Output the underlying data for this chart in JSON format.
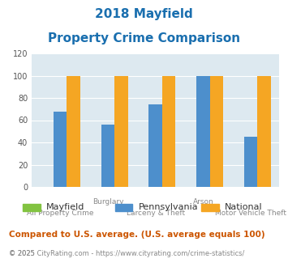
{
  "title_line1": "2018 Mayfield",
  "title_line2": "Property Crime Comparison",
  "title_color": "#1a6faf",
  "categories": [
    "All Property Crime",
    "Burglary",
    "Larceny & Theft",
    "Arson",
    "Motor Vehicle Theft"
  ],
  "category_labels_top": [
    "",
    "Burglary",
    "",
    "Arson",
    ""
  ],
  "category_labels_bot": [
    "All Property Crime",
    "",
    "Larceny & Theft",
    "",
    "Motor Vehicle Theft"
  ],
  "mayfield": [
    0,
    0,
    0,
    0,
    0
  ],
  "pennsylvania": [
    68,
    56,
    74,
    100,
    45
  ],
  "national": [
    100,
    100,
    100,
    100,
    100
  ],
  "mayfield_color": "#82c341",
  "pennsylvania_color": "#4d8fcc",
  "national_color": "#f5a623",
  "ylim": [
    0,
    120
  ],
  "yticks": [
    0,
    20,
    40,
    60,
    80,
    100,
    120
  ],
  "bg_color": "#dde9f0",
  "legend_labels": [
    "Mayfield",
    "Pennsylvania",
    "National"
  ],
  "footnote1": "Compared to U.S. average. (U.S. average equals 100)",
  "footnote2": "© 2025 CityRating.com - https://www.cityrating.com/crime-statistics/",
  "footnote1_color": "#cc5500",
  "footnote2_color": "#888888",
  "url_color": "#4d8fcc"
}
